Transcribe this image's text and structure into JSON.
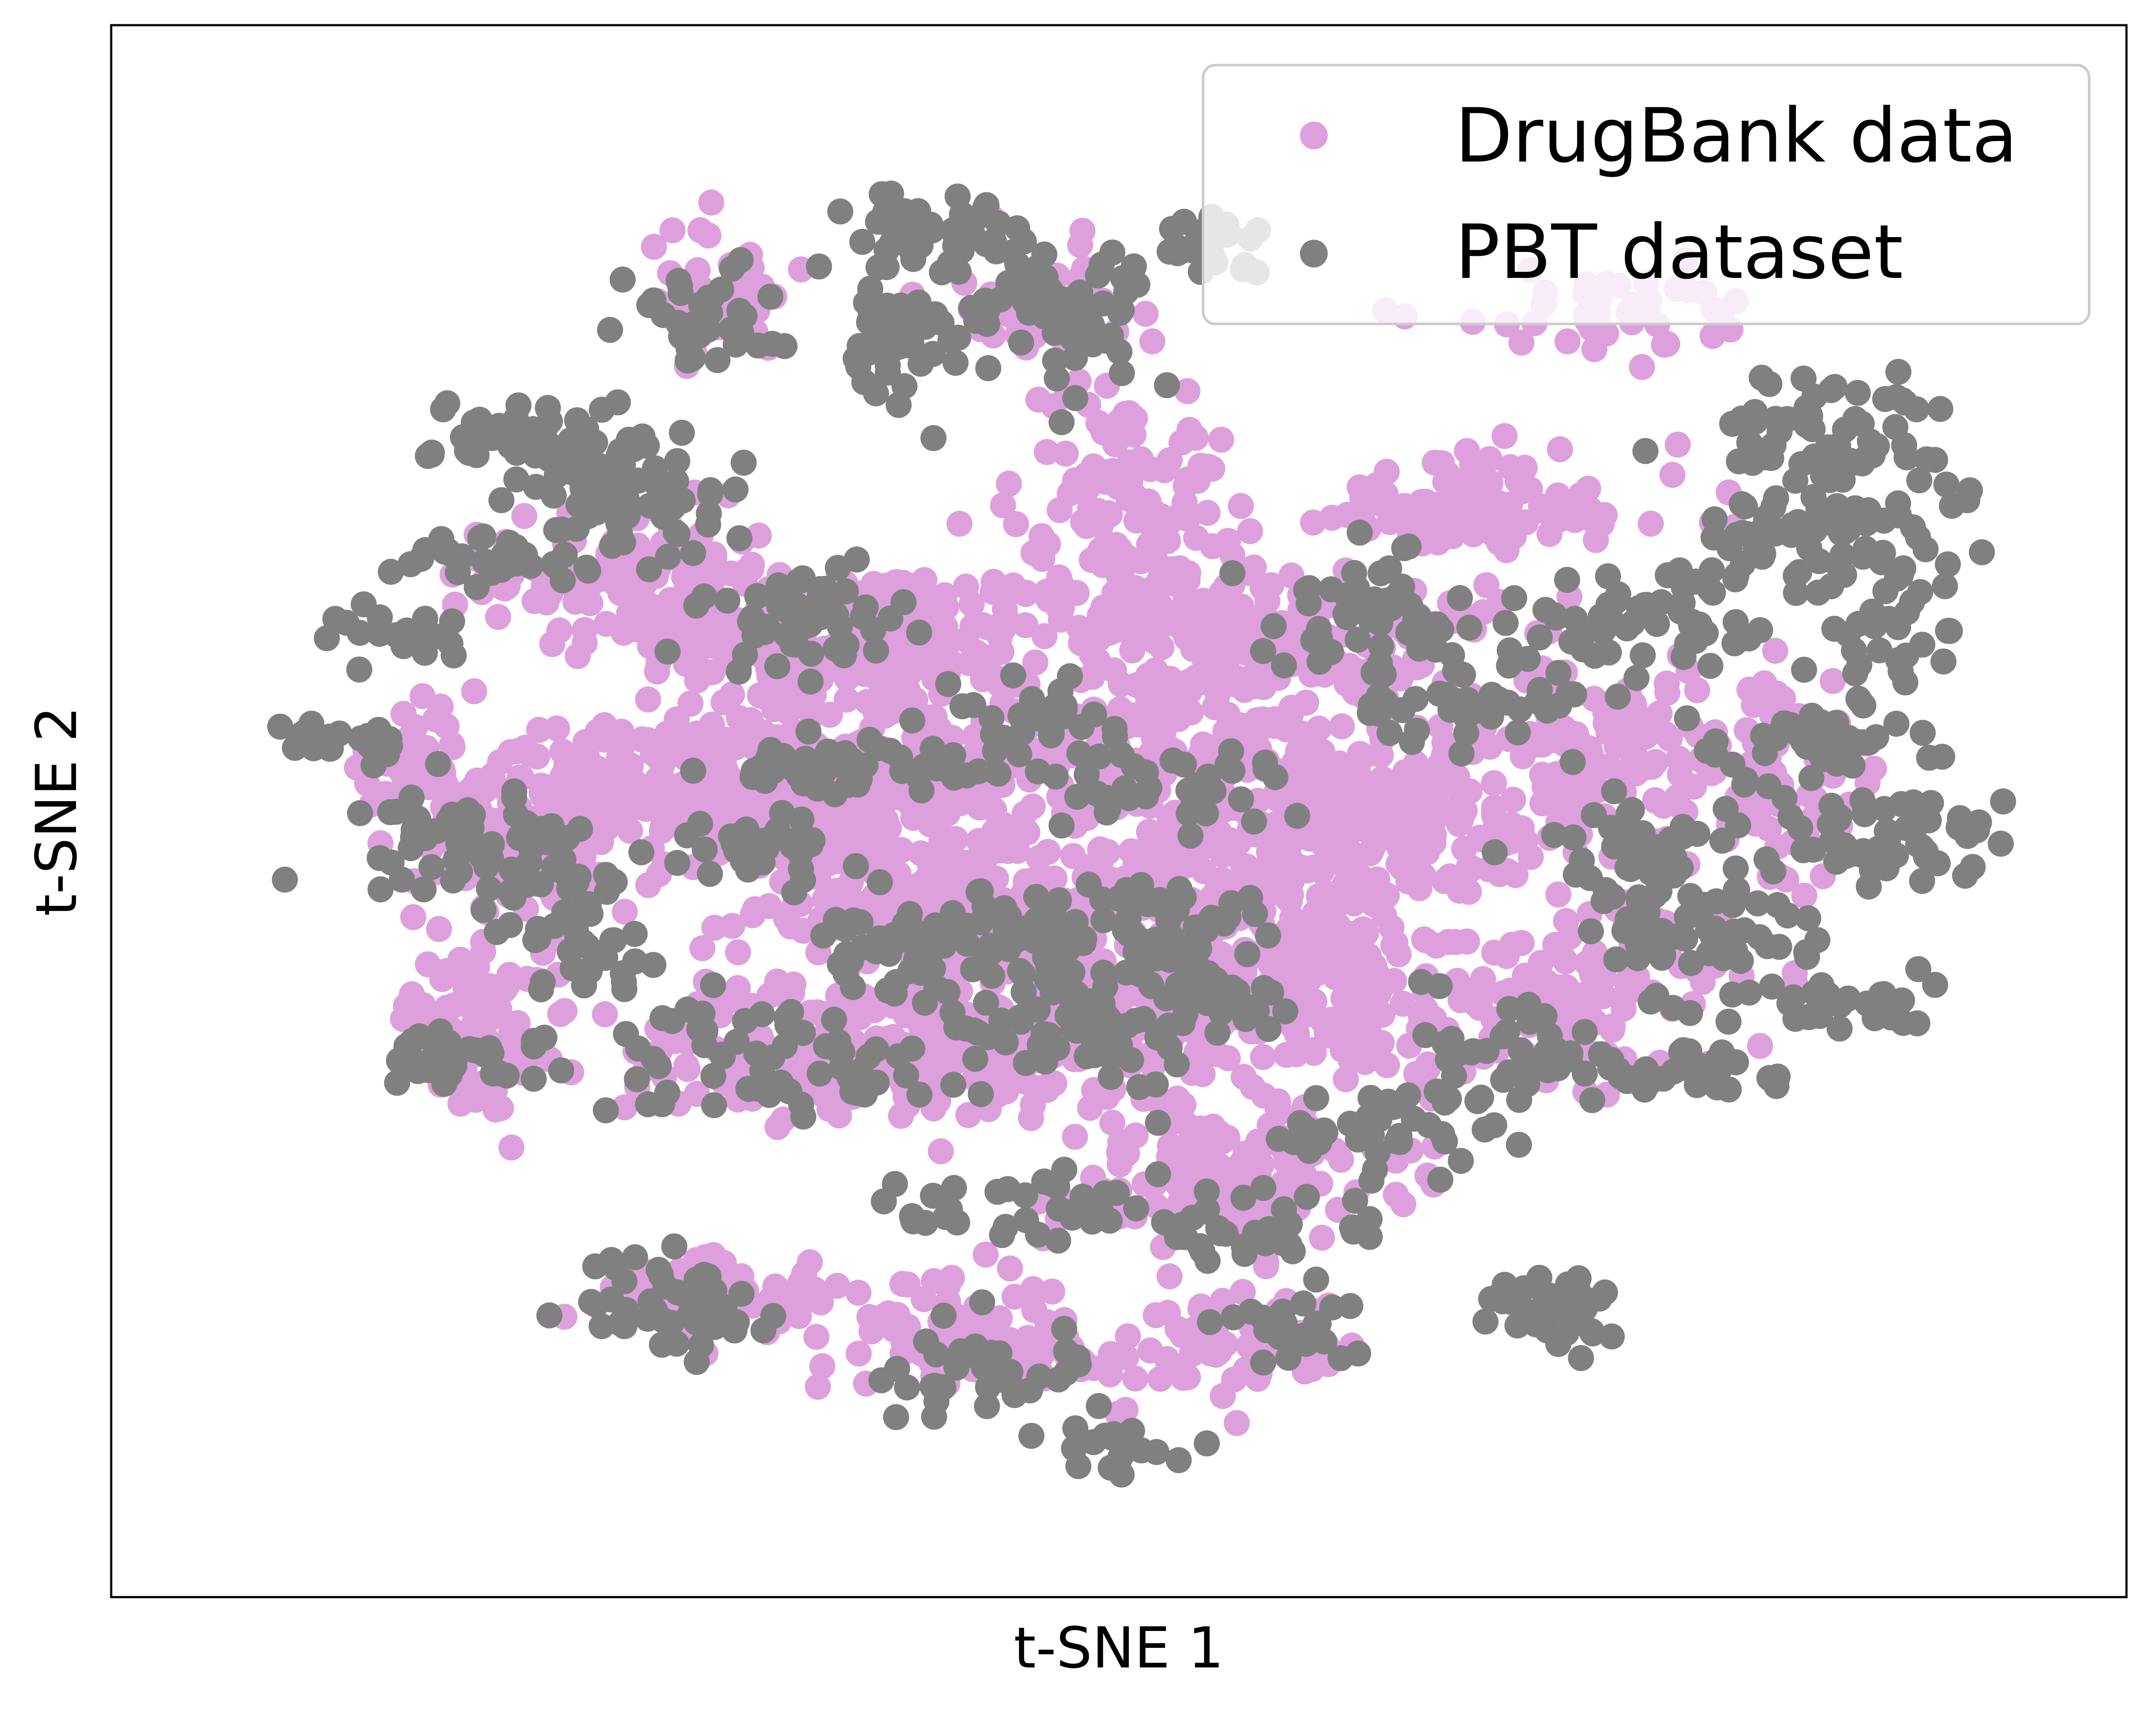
{
  "chart_data": {
    "type": "scatter",
    "title": "",
    "xlabel": "t-SNE 1",
    "ylabel": "t-SNE 2",
    "xlim": [
      -100,
      100
    ],
    "ylim": [
      -100,
      100
    ],
    "grid": false,
    "axis_ticks_shown": false,
    "legend_position": "top-right",
    "series": [
      {
        "name": "DrugBank data",
        "color": "#dda0dd",
        "clusters": [
          {
            "x": -30,
            "y": 24,
            "sx": 12,
            "sy": 6,
            "n": 220
          },
          {
            "x": -55,
            "y": 34,
            "sx": 8,
            "sy": 5,
            "n": 120
          },
          {
            "x": -52,
            "y": 6,
            "sx": 9,
            "sy": 4,
            "n": 120
          },
          {
            "x": -65,
            "y": -4,
            "sx": 7,
            "sy": 6,
            "n": 110
          },
          {
            "x": -30,
            "y": 2,
            "sx": 11,
            "sy": 5,
            "n": 170
          },
          {
            "x": -20,
            "y": -14,
            "sx": 11,
            "sy": 6,
            "n": 200
          },
          {
            "x": -30,
            "y": -35,
            "sx": 14,
            "sy": 5,
            "n": 200
          },
          {
            "x": 0,
            "y": -30,
            "sx": 10,
            "sy": 5,
            "n": 150
          },
          {
            "x": 12,
            "y": -10,
            "sx": 11,
            "sy": 7,
            "n": 180
          },
          {
            "x": 6,
            "y": 10,
            "sx": 12,
            "sy": 6,
            "n": 180
          },
          {
            "x": 0,
            "y": 44,
            "sx": 6,
            "sy": 10,
            "n": 130
          },
          {
            "x": 8,
            "y": 28,
            "sx": 8,
            "sy": 4,
            "n": 80
          },
          {
            "x": 25,
            "y": 24,
            "sx": 9,
            "sy": 6,
            "n": 110
          },
          {
            "x": 30,
            "y": -2,
            "sx": 11,
            "sy": 6,
            "n": 170
          },
          {
            "x": 25,
            "y": -26,
            "sx": 9,
            "sy": 6,
            "n": 140
          },
          {
            "x": 12,
            "y": -52,
            "sx": 10,
            "sy": 6,
            "n": 140
          },
          {
            "x": 52,
            "y": -26,
            "sx": 8,
            "sy": 6,
            "n": 110
          },
          {
            "x": 55,
            "y": 8,
            "sx": 9,
            "sy": 6,
            "n": 110
          },
          {
            "x": 40,
            "y": 44,
            "sx": 12,
            "sy": 4,
            "n": 100
          },
          {
            "x": -72,
            "y": -30,
            "sx": 4,
            "sy": 6,
            "n": 80
          },
          {
            "x": -80,
            "y": 6,
            "sx": 4,
            "sy": 4,
            "n": 40
          },
          {
            "x": -45,
            "y": -70,
            "sx": 7,
            "sy": 3,
            "n": 60
          },
          {
            "x": -18,
            "y": -76,
            "sx": 8,
            "sy": 4,
            "n": 70
          },
          {
            "x": 10,
            "y": -78,
            "sx": 9,
            "sy": 4,
            "n": 70
          },
          {
            "x": 75,
            "y": 4,
            "sx": 6,
            "sy": 8,
            "n": 70
          },
          {
            "x": 55,
            "y": 72,
            "sx": 10,
            "sy": 3,
            "n": 40
          },
          {
            "x": -45,
            "y": 74,
            "sx": 4,
            "sy": 5,
            "n": 40
          },
          {
            "x": -10,
            "y": 74,
            "sx": 5,
            "sy": 4,
            "n": 35
          }
        ]
      },
      {
        "name": "PBT dataset",
        "color": "#808080",
        "clusters": [
          {
            "x": -20,
            "y": 82,
            "sx": 5,
            "sy": 4,
            "n": 60
          },
          {
            "x": -25,
            "y": 68,
            "sx": 4,
            "sy": 4,
            "n": 40
          },
          {
            "x": -5,
            "y": 72,
            "sx": 4,
            "sy": 5,
            "n": 50
          },
          {
            "x": 10,
            "y": 82,
            "sx": 4,
            "sy": 2,
            "n": 25
          },
          {
            "x": -48,
            "y": 72,
            "sx": 5,
            "sy": 4,
            "n": 40
          },
          {
            "x": -65,
            "y": 54,
            "sx": 6,
            "sy": 3,
            "n": 60
          },
          {
            "x": -55,
            "y": 44,
            "sx": 6,
            "sy": 4,
            "n": 60
          },
          {
            "x": -70,
            "y": 36,
            "sx": 6,
            "sy": 2,
            "n": 30
          },
          {
            "x": -80,
            "y": 26,
            "sx": 4,
            "sy": 2,
            "n": 20
          },
          {
            "x": -88,
            "y": 10,
            "sx": 3,
            "sy": 2,
            "n": 20
          },
          {
            "x": -76,
            "y": -4,
            "sx": 5,
            "sy": 4,
            "n": 40
          },
          {
            "x": -65,
            "y": -8,
            "sx": 4,
            "sy": 4,
            "n": 35
          },
          {
            "x": -75,
            "y": -36,
            "sx": 5,
            "sy": 2,
            "n": 30
          },
          {
            "x": -60,
            "y": -20,
            "sx": 5,
            "sy": 3,
            "n": 30
          },
          {
            "x": -35,
            "y": 28,
            "sx": 6,
            "sy": 4,
            "n": 50
          },
          {
            "x": -30,
            "y": 6,
            "sx": 8,
            "sy": 2,
            "n": 50
          },
          {
            "x": -40,
            "y": -5,
            "sx": 6,
            "sy": 2,
            "n": 30
          },
          {
            "x": -22,
            "y": -20,
            "sx": 8,
            "sy": 4,
            "n": 70
          },
          {
            "x": -40,
            "y": -36,
            "sx": 10,
            "sy": 4,
            "n": 60
          },
          {
            "x": -5,
            "y": -32,
            "sx": 8,
            "sy": 4,
            "n": 60
          },
          {
            "x": 0,
            "y": -18,
            "sx": 10,
            "sy": 4,
            "n": 70
          },
          {
            "x": 5,
            "y": 4,
            "sx": 8,
            "sy": 3,
            "n": 40
          },
          {
            "x": -10,
            "y": 14,
            "sx": 5,
            "sy": 3,
            "n": 30
          },
          {
            "x": 28,
            "y": 28,
            "sx": 6,
            "sy": 4,
            "n": 50
          },
          {
            "x": 40,
            "y": 16,
            "sx": 7,
            "sy": 3,
            "n": 40
          },
          {
            "x": 60,
            "y": 28,
            "sx": 10,
            "sy": 4,
            "n": 60
          },
          {
            "x": 75,
            "y": 40,
            "sx": 6,
            "sy": 3,
            "n": 40
          },
          {
            "x": 80,
            "y": 55,
            "sx": 7,
            "sy": 4,
            "n": 60
          },
          {
            "x": 85,
            "y": 35,
            "sx": 5,
            "sy": 10,
            "n": 60
          },
          {
            "x": 78,
            "y": 10,
            "sx": 7,
            "sy": 3,
            "n": 50
          },
          {
            "x": 86,
            "y": -4,
            "sx": 8,
            "sy": 4,
            "n": 60
          },
          {
            "x": 65,
            "y": -18,
            "sx": 6,
            "sy": 4,
            "n": 50
          },
          {
            "x": 58,
            "y": -6,
            "sx": 5,
            "sy": 4,
            "n": 40
          },
          {
            "x": 80,
            "y": -28,
            "sx": 6,
            "sy": 2,
            "n": 30
          },
          {
            "x": 65,
            "y": -38,
            "sx": 5,
            "sy": 3,
            "n": 30
          },
          {
            "x": 45,
            "y": -34,
            "sx": 6,
            "sy": 4,
            "n": 40
          },
          {
            "x": 30,
            "y": -46,
            "sx": 8,
            "sy": 3,
            "n": 40
          },
          {
            "x": 15,
            "y": -60,
            "sx": 8,
            "sy": 4,
            "n": 40
          },
          {
            "x": 50,
            "y": -72,
            "sx": 4,
            "sy": 3,
            "n": 40
          },
          {
            "x": -50,
            "y": -72,
            "sx": 5,
            "sy": 4,
            "n": 50
          },
          {
            "x": -15,
            "y": -80,
            "sx": 7,
            "sy": 4,
            "n": 40
          },
          {
            "x": 0,
            "y": -92,
            "sx": 4,
            "sy": 2,
            "n": 20
          },
          {
            "x": 20,
            "y": -74,
            "sx": 4,
            "sy": 3,
            "n": 30
          },
          {
            "x": -12,
            "y": -58,
            "sx": 6,
            "sy": 3,
            "n": 30
          },
          {
            "x": 10,
            "y": -26,
            "sx": 5,
            "sy": 3,
            "n": 30
          }
        ]
      }
    ]
  }
}
